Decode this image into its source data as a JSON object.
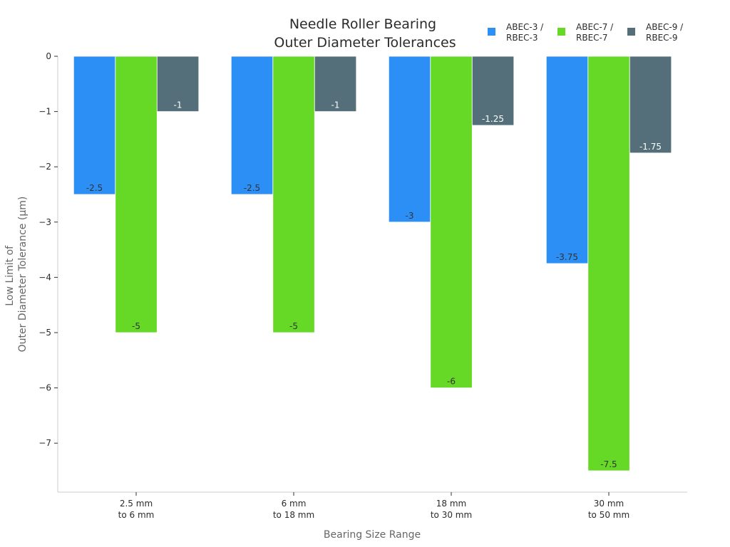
{
  "chart_data": {
    "type": "bar",
    "title": [
      "Needle Roller Bearing",
      "Outer Diameter Tolerances"
    ],
    "xlabel": "Bearing Size Range",
    "ylabel": [
      "Low Limit of",
      "Outer Diameter Tolerance (μm)"
    ],
    "categories": [
      [
        "2.5 mm",
        "to 6 mm"
      ],
      [
        "6 mm",
        "to 18 mm"
      ],
      [
        "18 mm",
        "to 30 mm"
      ],
      [
        "30 mm",
        "to 50 mm"
      ]
    ],
    "series": [
      {
        "name": [
          "ABEC-3 /",
          "RBEC-3"
        ],
        "color": "#2b8ff5",
        "label_color": "#333333",
        "values": [
          -2.5,
          -2.5,
          -3,
          -3.75
        ],
        "labels": [
          "-2.5",
          "-2.5",
          "-3",
          "-3.75"
        ]
      },
      {
        "name": [
          "ABEC-7 /",
          "RBEC-7"
        ],
        "color": "#66d926",
        "label_color": "#333333",
        "values": [
          -5,
          -5,
          -6,
          -7.5
        ],
        "labels": [
          "-5",
          "-5",
          "-6",
          "-7.5"
        ]
      },
      {
        "name": [
          "ABEC-9 /",
          "RBEC-9"
        ],
        "color": "#546e7a",
        "label_color": "#ffffff",
        "values": [
          -1,
          -1,
          -1.25,
          -1.75
        ],
        "labels": [
          "-1",
          "-1",
          "-1.25",
          "-1.75"
        ]
      }
    ],
    "yticks": [
      0,
      -1,
      -2,
      -3,
      -4,
      -5,
      -6,
      -7
    ],
    "ytick_labels": [
      "0",
      "−1",
      "−2",
      "−3",
      "−4",
      "−5",
      "−6",
      "−7"
    ],
    "ylim": [
      -7.9,
      0
    ],
    "grid": false,
    "legend": "top-right"
  }
}
